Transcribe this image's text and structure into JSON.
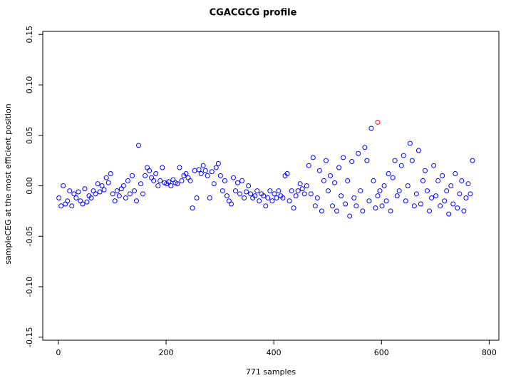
{
  "chart_data": {
    "type": "scatter",
    "title": "CGACGCG profile",
    "x_label": "771 samples",
    "y_label": "sampleCEG at the most efficient position",
    "xlim": [
      -29,
      818
    ],
    "ylim": [
      -0.153,
      0.153
    ],
    "xticks": [
      0,
      200,
      400,
      600,
      800
    ],
    "yticks": [
      -0.15,
      {
        "value": -0.1,
        "label": "-0.10"
      },
      -0.05,
      {
        "value": 0,
        "label": "0.00"
      },
      0.05,
      {
        "value": 0.1,
        "label": "0.10"
      },
      0.15
    ],
    "series": [
      {
        "color": "#0000ff",
        "x": [
          1,
          5,
          9,
          13,
          17,
          21,
          25,
          29,
          33,
          37,
          41,
          45,
          49,
          53,
          57,
          61,
          65,
          69,
          73,
          77,
          81,
          85,
          89,
          93,
          97,
          101,
          105,
          109,
          113,
          117,
          121,
          125,
          129,
          133,
          137,
          141,
          145,
          149,
          153,
          157,
          161,
          165,
          169,
          173,
          177,
          181,
          185,
          189,
          193,
          197,
          201,
          205,
          209,
          213,
          217,
          221,
          225,
          229,
          233,
          237,
          241,
          245,
          249,
          253,
          257,
          261,
          265,
          269,
          273,
          277,
          281,
          285,
          289,
          293,
          297,
          301,
          305,
          309,
          313,
          317,
          321,
          325,
          329,
          333,
          337,
          341,
          345,
          349,
          353,
          357,
          361,
          365,
          369,
          373,
          377,
          381,
          385,
          389,
          393,
          397,
          401,
          405,
          409,
          413,
          417,
          421,
          425,
          429,
          433,
          437,
          441,
          445,
          449,
          453,
          457,
          461,
          465,
          469,
          473,
          477,
          481,
          485,
          489,
          493,
          497,
          501,
          505,
          509,
          513,
          517,
          521,
          525,
          529,
          533,
          537,
          541,
          545,
          549,
          553,
          557,
          561,
          565,
          569,
          573,
          577,
          581,
          585,
          589,
          593,
          597,
          601,
          605,
          609,
          613,
          617,
          621,
          625,
          629,
          633,
          637,
          641,
          645,
          649,
          653,
          657,
          661,
          665,
          669,
          673,
          677,
          681,
          685,
          689,
          693,
          697,
          701,
          705,
          709,
          713,
          717,
          721,
          725,
          729,
          733,
          737,
          741,
          745,
          749,
          753,
          757,
          761,
          765,
          769
        ],
        "values": [
          -0.012,
          -0.02,
          0.0,
          -0.018,
          -0.015,
          -0.005,
          -0.02,
          -0.008,
          -0.012,
          -0.006,
          -0.015,
          -0.018,
          -0.003,
          -0.016,
          -0.01,
          -0.012,
          -0.005,
          -0.008,
          0.002,
          -0.006,
          0.0,
          -0.004,
          0.008,
          0.003,
          0.012,
          -0.008,
          -0.015,
          -0.005,
          -0.01,
          -0.003,
          0.0,
          -0.012,
          0.005,
          -0.008,
          0.01,
          -0.005,
          -0.015,
          0.04,
          0.002,
          -0.008,
          0.01,
          0.018,
          0.015,
          0.008,
          0.005,
          0.012,
          0.0,
          0.005,
          0.018,
          0.003,
          0.002,
          0.004,
          0.0,
          0.006,
          0.003,
          0.002,
          0.018,
          0.005,
          0.01,
          0.012,
          0.008,
          0.005,
          -0.022,
          0.015,
          -0.012,
          0.016,
          0.012,
          0.02,
          0.015,
          0.01,
          -0.012,
          0.014,
          0.002,
          0.018,
          0.022,
          0.01,
          -0.005,
          0.005,
          -0.01,
          -0.015,
          -0.018,
          0.008,
          -0.005,
          0.003,
          -0.008,
          0.005,
          -0.012,
          -0.006,
          0.0,
          -0.008,
          -0.012,
          -0.01,
          -0.005,
          -0.015,
          -0.008,
          -0.01,
          -0.02,
          -0.012,
          -0.005,
          -0.015,
          -0.008,
          -0.012,
          -0.005,
          -0.01,
          -0.012,
          0.01,
          0.012,
          -0.015,
          -0.005,
          -0.022,
          -0.01,
          -0.005,
          0.002,
          -0.003,
          -0.008,
          0.0,
          0.02,
          -0.008,
          0.028,
          -0.02,
          -0.012,
          0.015,
          -0.025,
          0.005,
          0.025,
          -0.005,
          0.01,
          -0.02,
          0.003,
          -0.025,
          0.018,
          -0.01,
          0.028,
          -0.018,
          0.005,
          -0.03,
          0.024,
          -0.012,
          -0.02,
          0.032,
          -0.005,
          -0.025,
          0.038,
          0.025,
          -0.015,
          0.057,
          0.005,
          -0.022,
          -0.01,
          -0.005,
          -0.02,
          0.0,
          -0.015,
          0.012,
          -0.025,
          0.008,
          0.025,
          -0.01,
          -0.005,
          0.02,
          0.03,
          -0.015,
          0.0,
          0.042,
          0.025,
          -0.02,
          -0.008,
          0.035,
          -0.018,
          0.005,
          0.015,
          -0.005,
          -0.025,
          -0.012,
          0.02,
          -0.01,
          0.005,
          -0.02,
          0.01,
          -0.015,
          -0.005,
          -0.028,
          0.0,
          -0.018,
          0.012,
          -0.022,
          -0.008,
          0.005,
          -0.025,
          -0.012,
          0.002,
          -0.008,
          0.025
        ]
      },
      {
        "color": "#ff0000",
        "x": [
          593
        ],
        "values": [
          0.063
        ]
      }
    ]
  }
}
